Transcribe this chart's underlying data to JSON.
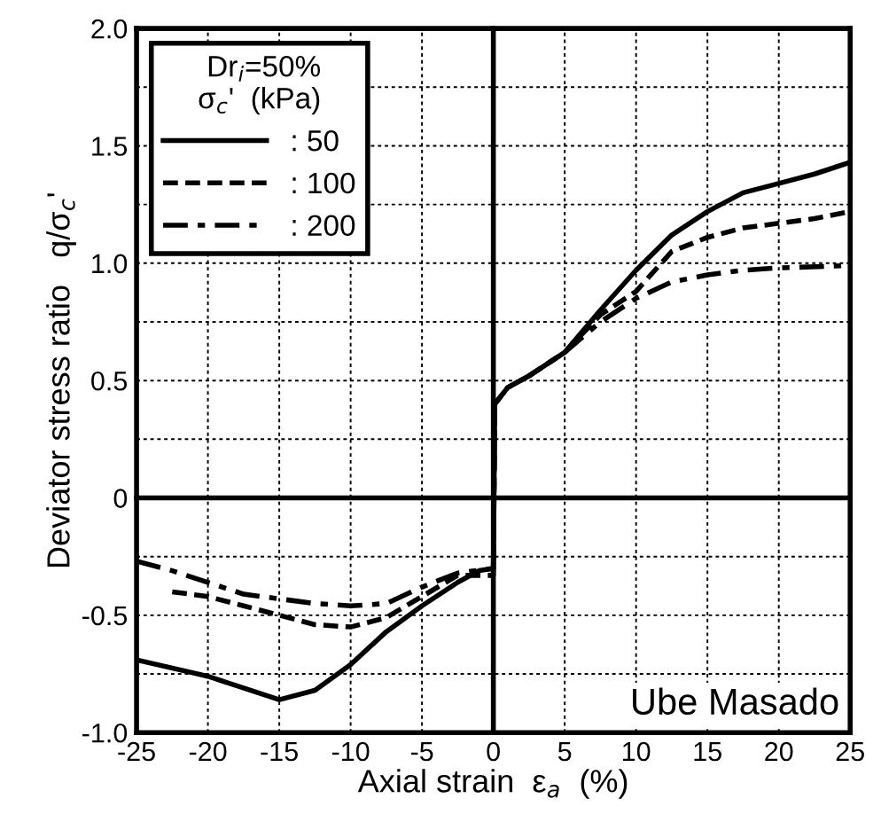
{
  "chart_data": {
    "type": "line",
    "xlabel": "Axial strain  ε$_{a}$  (%)",
    "ylabel": "Deviator stress ratio   q/σ$_{c}$'",
    "legend_title": "Dr$_{i}$=50%\nσ$_{c}$'  (kPa)",
    "legend": "top left",
    "grid": true,
    "xlim": [
      -25,
      25
    ],
    "ylim": [
      -1.0,
      2.0
    ],
    "xticks": [
      -25,
      -20,
      -15,
      -10,
      -5,
      0,
      5,
      10,
      15,
      20,
      25
    ],
    "yticks": [
      {
        "value": -1.0,
        "label": "-1.0"
      },
      {
        "value": -0.75,
        "label": null
      },
      {
        "value": -0.5,
        "label": "-0.5"
      },
      {
        "value": -0.25,
        "label": null
      },
      {
        "value": 0,
        "label": "0"
      },
      {
        "value": 0.25,
        "label": null
      },
      {
        "value": 0.5,
        "label": "0.5"
      },
      {
        "value": 0.75,
        "label": null
      },
      {
        "value": 1.0,
        "label": "1.0"
      },
      {
        "value": 1.25,
        "label": null
      },
      {
        "value": 1.5,
        "label": "1.5"
      },
      {
        "value": 1.75,
        "label": null
      },
      {
        "value": 2.0,
        "label": "2.0"
      }
    ],
    "annotations": [
      "Ube Masado"
    ],
    "series": [
      {
        "name": ": 50",
        "color": "#000000",
        "line_style": "solid",
        "x": [
          -25,
          -20,
          -17.5,
          -15,
          -12.5,
          -10,
          -7.5,
          -5,
          -2.5,
          -1,
          0,
          0.1,
          1,
          2.5,
          5,
          7.5,
          10,
          12.5,
          15,
          17.5,
          20,
          22.5,
          25
        ],
        "values": [
          -0.69,
          -0.76,
          -0.81,
          -0.86,
          -0.82,
          -0.71,
          -0.57,
          -0.46,
          -0.36,
          -0.31,
          -0.3,
          0.4,
          0.47,
          0.52,
          0.62,
          0.8,
          0.97,
          1.12,
          1.22,
          1.3,
          1.34,
          1.38,
          1.43
        ]
      },
      {
        "name": ": 100",
        "color": "#000000",
        "line_style": "dashed",
        "x": [
          -22.5,
          -20,
          -17.5,
          -15,
          -12.5,
          -10,
          -7.5,
          -5,
          -2.5,
          0,
          0.1,
          1,
          2.5,
          5,
          7.5,
          10,
          12.5,
          15,
          17.5,
          20,
          22.5,
          25
        ],
        "values": [
          -0.4,
          -0.42,
          -0.46,
          -0.5,
          -0.54,
          -0.55,
          -0.51,
          -0.42,
          -0.33,
          -0.33,
          0.4,
          0.47,
          0.52,
          0.62,
          0.78,
          0.88,
          1.05,
          1.11,
          1.15,
          1.17,
          1.19,
          1.22
        ]
      },
      {
        "name": ": 200",
        "color": "#000000",
        "line_style": "dashdot",
        "x": [
          -25,
          -22.5,
          -20,
          -17.5,
          -15,
          -12.5,
          -10,
          -7.5,
          -5,
          -2.5,
          0,
          0.1,
          1,
          2.5,
          5,
          7.5,
          10,
          12.5,
          15,
          17.5,
          20,
          25
        ],
        "values": [
          -0.27,
          -0.31,
          -0.36,
          -0.41,
          -0.43,
          -0.45,
          -0.46,
          -0.45,
          -0.38,
          -0.32,
          -0.3,
          0.4,
          0.47,
          0.52,
          0.62,
          0.75,
          0.85,
          0.92,
          0.95,
          0.97,
          0.98,
          0.99
        ]
      }
    ]
  }
}
